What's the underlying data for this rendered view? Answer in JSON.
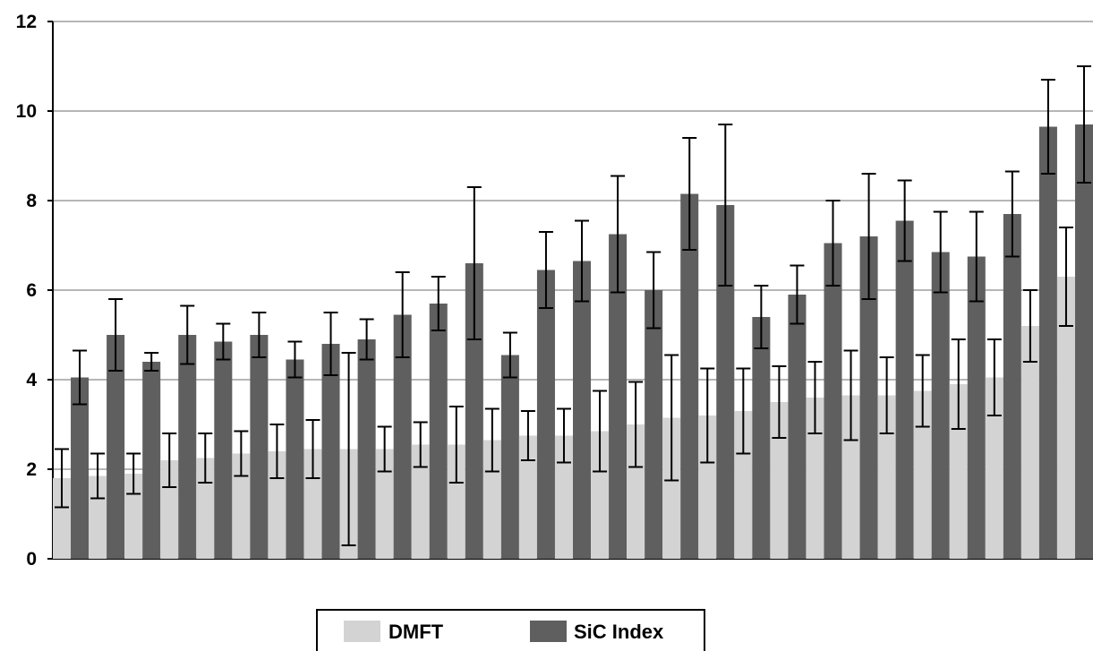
{
  "chart_data": {
    "type": "bar",
    "title": "",
    "xlabel": "",
    "ylabel": "",
    "ylim": [
      0,
      12
    ],
    "yticks": [
      0,
      2,
      4,
      6,
      8,
      10,
      12
    ],
    "grid": true,
    "legend_position": "bottom-center",
    "series": [
      {
        "name": "DMFT",
        "color": "#d3d3d3",
        "values": [
          1.8,
          1.85,
          1.9,
          2.2,
          2.25,
          2.35,
          2.4,
          2.45,
          2.45,
          2.45,
          2.55,
          2.55,
          2.65,
          2.75,
          2.75,
          2.85,
          3.0,
          3.15,
          3.2,
          3.3,
          3.5,
          3.6,
          3.65,
          3.65,
          3.75,
          3.9,
          4.05,
          5.2,
          6.3
        ],
        "error": [
          0.65,
          0.5,
          0.45,
          0.6,
          0.55,
          0.5,
          0.6,
          0.65,
          2.15,
          0.5,
          0.5,
          0.85,
          0.7,
          0.55,
          0.6,
          0.9,
          0.95,
          1.4,
          1.05,
          0.95,
          0.8,
          0.8,
          1.0,
          0.85,
          0.8,
          1.0,
          0.85,
          0.8,
          1.1
        ]
      },
      {
        "name": "SiC Index",
        "color": "#5f5f5f",
        "values": [
          4.05,
          5.0,
          4.4,
          5.0,
          4.85,
          5.0,
          4.45,
          4.8,
          4.9,
          5.45,
          5.7,
          6.6,
          4.55,
          6.45,
          6.65,
          7.25,
          6.0,
          8.15,
          7.9,
          5.4,
          5.9,
          7.05,
          7.2,
          7.55,
          6.85,
          6.75,
          7.7,
          9.65,
          9.7
        ]
      }
    ],
    "sic_error": [
      0.6,
      0.8,
      0.2,
      0.65,
      0.4,
      0.5,
      0.4,
      0.7,
      0.45,
      0.95,
      0.6,
      1.7,
      0.5,
      0.85,
      0.9,
      1.3,
      0.85,
      1.25,
      1.8,
      0.7,
      0.65,
      0.95,
      1.4,
      0.9,
      0.9,
      1.0,
      0.95,
      1.05,
      1.3
    ]
  }
}
